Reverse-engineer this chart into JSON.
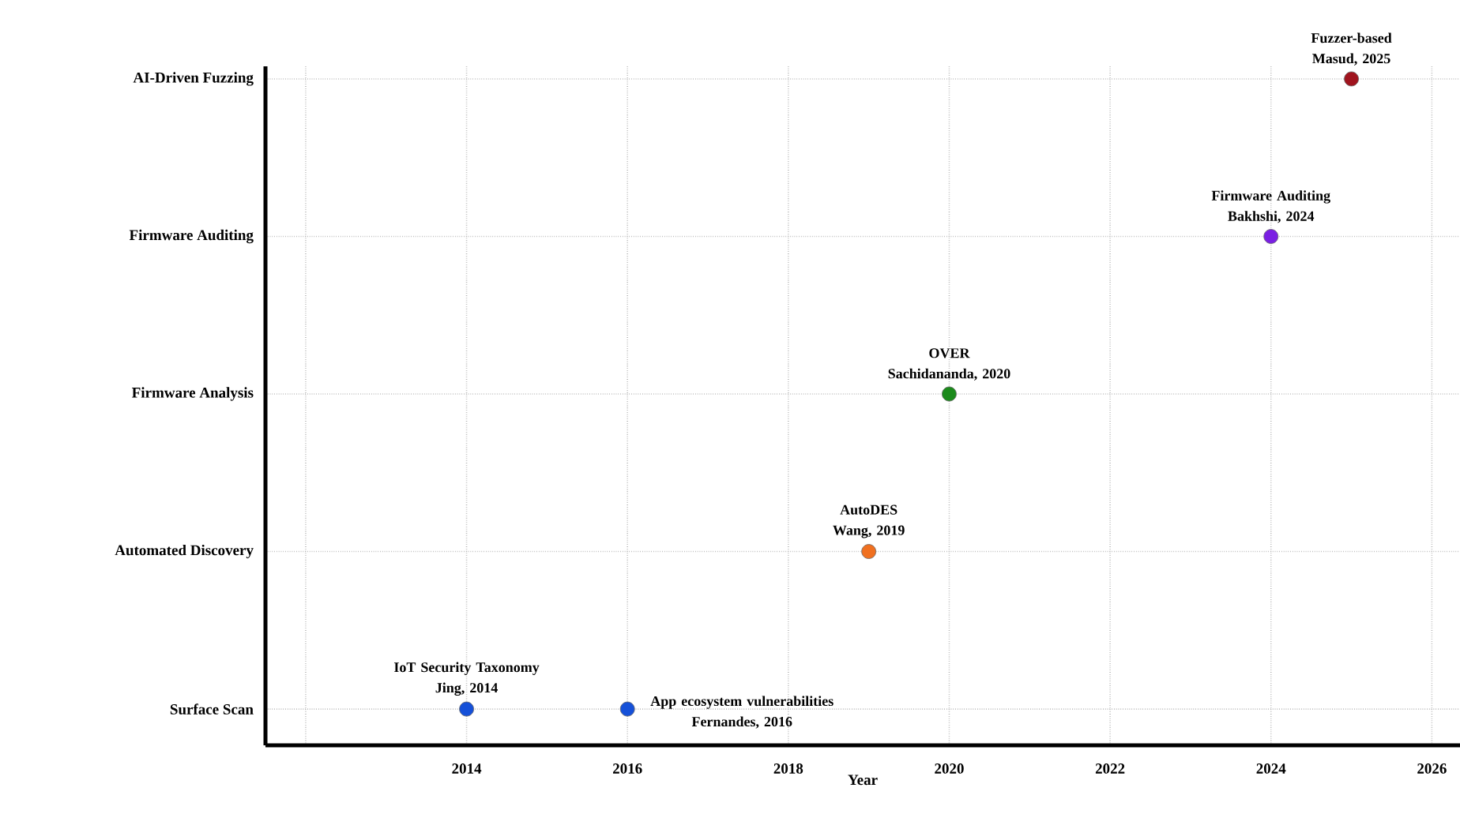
{
  "chart_data": {
    "type": "scatter",
    "orientation": "horizontal",
    "xlabel": "Year",
    "categories": [
      "AI-Driven Fuzzing",
      "Firmware Auditing",
      "Firmware Analysis",
      "Automated Discovery",
      "Surface Scan"
    ],
    "series": [
      {
        "colors": [
          "#a0141e",
          "#7a1fe3",
          "#1b8a1b",
          "#f07020",
          "#1550d8"
        ],
        "values": [
          2025,
          2024,
          2020,
          2019,
          2014
        ]
      },
      {
        "colors": [
          null,
          null,
          null,
          null,
          "#1550d8"
        ],
        "values": [
          null,
          null,
          null,
          null,
          2016
        ]
      }
    ],
    "xlim": [
      2011.5,
      2026.35
    ],
    "xticks": [
      {
        "value": 2012,
        "label": null
      },
      2014,
      2016,
      2018,
      2020,
      2022,
      2024,
      2026
    ],
    "grid": true,
    "marker": "circle",
    "annotations": [
      {
        "text": "Fuzzer-based\nMasud, 2025",
        "x": 2025,
        "y": "AI-Driven Fuzzing"
      },
      {
        "text": "Firmware Auditing\nBakhshi, 2024",
        "x": 2024,
        "y": "Firmware Auditing"
      },
      {
        "text": "OVER\nSachidananda, 2020",
        "x": 2020,
        "y": "Firmware Analysis"
      },
      {
        "text": "AutoDES\nWang, 2019",
        "x": 2019,
        "y": "Automated Discovery"
      },
      {
        "text": "IoT Security Taxonomy\nJing, 2014",
        "x": 2014,
        "y": "Surface Scan"
      },
      {
        "text": "App ecosystem vulnerabilities\nFernandes, 2016",
        "x": 2016,
        "y": "Surface Scan"
      }
    ]
  }
}
